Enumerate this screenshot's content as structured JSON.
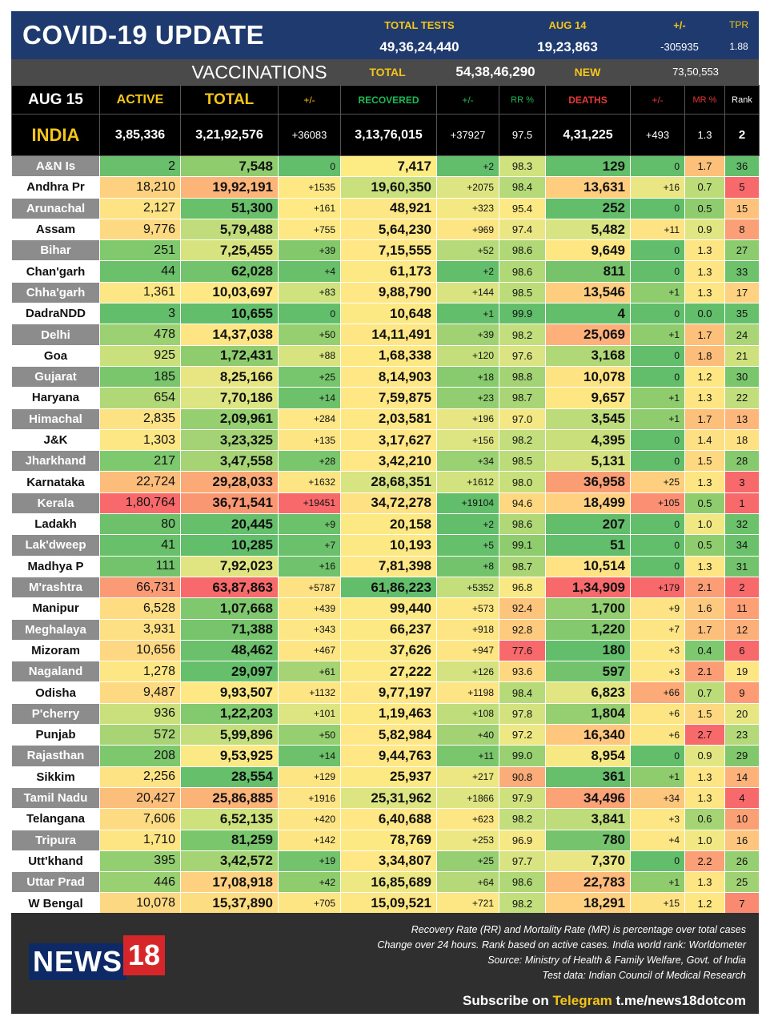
{
  "header": {
    "title": "COVID-19 UPDATE",
    "total_tests_label": "TOTAL TESTS",
    "total_tests_value": "49,36,24,440",
    "day_label": "AUG 14",
    "day_value": "19,23,863",
    "change_label": "+/-",
    "change_value": "-305935",
    "tpr_label": "TPR",
    "tpr_value": "1.88"
  },
  "vaccinations": {
    "label": "VACCINATIONS",
    "total_label": "TOTAL",
    "total_value": "54,38,46,290",
    "new_label": "NEW",
    "new_value": "73,50,553"
  },
  "columns": [
    "AUG 15",
    "ACTIVE",
    "TOTAL",
    "+/-",
    "RECOVERED",
    "+/-",
    "RR %",
    "DEATHS",
    "+/-",
    "MR %",
    "Rank"
  ],
  "india": [
    "INDIA",
    "3,85,336",
    "3,21,92,576",
    "+36083",
    "3,13,76,015",
    "+37927",
    "97.5",
    "4,31,225",
    "+493",
    "1.3",
    "2"
  ],
  "colors": {
    "header_bg": "#1e3a6e",
    "accent_yellow": "#f5c518",
    "recovered_green": "#1db954",
    "deaths_red": "#e53935"
  },
  "rows": [
    {
      "c": [
        "A&N Is",
        "2",
        "7,548",
        "0",
        "7,417",
        "+2",
        "98.3",
        "129",
        "0",
        "1.7",
        "36"
      ],
      "bg": [
        "",
        "#69bf6b",
        "#8fcc6e",
        "#63be6b",
        "#fdeb84",
        "#63be6b",
        "#cfe27d",
        "#63be6b",
        "#63be6b",
        "#fcc07b",
        "#63be6b"
      ]
    },
    {
      "c": [
        "Andhra Pr",
        "18,210",
        "19,92,191",
        "+1535",
        "19,60,350",
        "+2075",
        "98.4",
        "13,631",
        "+16",
        "0.7",
        "5"
      ],
      "bg": [
        "",
        "#fdd17f",
        "#fcb479",
        "#fde884",
        "#cae07d",
        "#dde582",
        "#b7da79",
        "#fecd7e",
        "#e9e683",
        "#bcdc79",
        "#f8696b"
      ]
    },
    {
      "c": [
        "Arunachal",
        "2,127",
        "51,300",
        "+161",
        "48,921",
        "+323",
        "95.4",
        "252",
        "0",
        "0.5",
        "15"
      ],
      "bg": [
        "",
        "#fde383",
        "#69c06b",
        "#ffe984",
        "#fde784",
        "#f4e883",
        "#fde984",
        "#63be6b",
        "#63be6b",
        "#8fcc6e",
        "#fec27c"
      ]
    },
    {
      "c": [
        "Assam",
        "9,776",
        "5,79,488",
        "+755",
        "5,64,230",
        "+969",
        "97.4",
        "5,482",
        "+11",
        "0.9",
        "8"
      ],
      "bg": [
        "",
        "#fdd982",
        "#c1dd7b",
        "#fde884",
        "#fee784",
        "#fde584",
        "#e9e683",
        "#d8e481",
        "#fde383",
        "#e1e582",
        "#fba076"
      ]
    },
    {
      "c": [
        "Bihar",
        "251",
        "7,25,455",
        "+39",
        "7,15,555",
        "+52",
        "98.6",
        "9,649",
        "0",
        "1.3",
        "27"
      ],
      "bg": [
        "",
        "#81c96d",
        "#d6e37f",
        "#83c96c",
        "#fee784",
        "#b6da79",
        "#b1d877",
        "#fee683",
        "#63be6b",
        "#fee583",
        "#8ccb6e"
      ]
    },
    {
      "c": [
        "Chan'garh",
        "44",
        "62,028",
        "+4",
        "61,173",
        "+2",
        "98.6",
        "811",
        "0",
        "1.3",
        "33"
      ],
      "bg": [
        "",
        "#6ac06b",
        "#73c36c",
        "#69c06b",
        "#fde984",
        "#63be6b",
        "#b1d877",
        "#76c36c",
        "#63be6b",
        "#fee583",
        "#6fc26c"
      ]
    },
    {
      "c": [
        "Chha'garh",
        "1,361",
        "10,03,697",
        "+83",
        "9,88,790",
        "+144",
        "98.5",
        "13,546",
        "+1",
        "1.3",
        "17"
      ],
      "bg": [
        "",
        "#fde684",
        "#fee884",
        "#cfe27d",
        "#fee784",
        "#d9e481",
        "#bcdc79",
        "#fecd7e",
        "#8ecc6e",
        "#fee583",
        "#fed280"
      ]
    },
    {
      "c": [
        "DadraNDD",
        "3",
        "10,655",
        "0",
        "10,648",
        "+1",
        "99.9",
        "4",
        "0",
        "0.0",
        "35"
      ],
      "bg": [
        "",
        "#63be6b",
        "#63be6b",
        "#63be6b",
        "#fde984",
        "#63be6b",
        "#63be6b",
        "#63be6b",
        "#63be6b",
        "#63be6b",
        "#66bf6b"
      ]
    },
    {
      "c": [
        "Delhi",
        "478",
        "14,37,038",
        "+50",
        "14,11,491",
        "+39",
        "98.2",
        "25,069",
        "+1",
        "1.7",
        "24"
      ],
      "bg": [
        "",
        "#9bd172",
        "#fde584",
        "#96cf70",
        "#fee684",
        "#a0d273",
        "#c3de7c",
        "#fdb079",
        "#8ecc6e",
        "#fcc07b",
        "#aad576"
      ]
    },
    {
      "c": [
        "Goa",
        "925",
        "1,72,431",
        "+88",
        "1,68,338",
        "+120",
        "97.6",
        "3,168",
        "0",
        "1.8",
        "21"
      ],
      "bg": [
        "",
        "#c9e07c",
        "#8fcc6e",
        "#d6e37f",
        "#fee884",
        "#c5de7c",
        "#dbe482",
        "#b0d877",
        "#63be6b",
        "#fcbc7a",
        "#cee17d"
      ]
    },
    {
      "c": [
        "Gujarat",
        "185",
        "8,25,166",
        "+25",
        "8,14,903",
        "+18",
        "98.8",
        "10,078",
        "0",
        "1.2",
        "30"
      ],
      "bg": [
        "",
        "#7ac66c",
        "#e8e683",
        "#77c56c",
        "#fee784",
        "#88cb6e",
        "#a3d375",
        "#fee383",
        "#63be6b",
        "#fee683",
        "#7ac66d"
      ]
    },
    {
      "c": [
        "Haryana",
        "654",
        "7,70,186",
        "+14",
        "7,59,875",
        "+23",
        "98.7",
        "9,657",
        "+1",
        "1.3",
        "22"
      ],
      "bg": [
        "",
        "#b1d877",
        "#dde582",
        "#6ec16b",
        "#fee784",
        "#92ce71",
        "#aad576",
        "#fee683",
        "#8ecc6e",
        "#fee583",
        "#c2dd7c"
      ]
    },
    {
      "c": [
        "Himachal",
        "2,835",
        "2,09,961",
        "+284",
        "2,03,581",
        "+196",
        "97.0",
        "3,545",
        "+1",
        "1.7",
        "13"
      ],
      "bg": [
        "",
        "#fde284",
        "#96cf70",
        "#fee784",
        "#fee884",
        "#e7e683",
        "#f3e884",
        "#bcdc79",
        "#8ecc6e",
        "#fcc07b",
        "#feb77a"
      ]
    },
    {
      "c": [
        "J&K",
        "1,303",
        "3,23,325",
        "+135",
        "3,17,627",
        "+156",
        "98.2",
        "4,395",
        "0",
        "1.4",
        "18"
      ],
      "bg": [
        "",
        "#fde684",
        "#a3d375",
        "#fde584",
        "#fee784",
        "#dde582",
        "#c3de7c",
        "#c8df7c",
        "#63be6b",
        "#fde083",
        "#fee183"
      ]
    },
    {
      "c": [
        "Jharkhand",
        "217",
        "3,47,558",
        "+28",
        "3,42,210",
        "+34",
        "98.5",
        "5,131",
        "0",
        "1.5",
        "28"
      ],
      "bg": [
        "",
        "#7ec86d",
        "#a6d475",
        "#7ac66d",
        "#fee784",
        "#9ad172",
        "#bcdc79",
        "#d3e27f",
        "#63be6b",
        "#fdd881",
        "#87ca6e"
      ]
    },
    {
      "c": [
        "Karnataka",
        "22,724",
        "29,28,033",
        "+1632",
        "28,68,351",
        "+1612",
        "98.0",
        "36,958",
        "+25",
        "1.3",
        "3"
      ],
      "bg": [
        "",
        "#fcbc7a",
        "#fbaa77",
        "#fde584",
        "#d8e481",
        "#d2e27f",
        "#c8e07c",
        "#fa9d75",
        "#fecf7f",
        "#fee583",
        "#f8696b"
      ]
    },
    {
      "c": [
        "Kerala",
        "1,80,764",
        "36,71,541",
        "+19451",
        "34,72,278",
        "+19104",
        "94.6",
        "18,499",
        "+105",
        "0.5",
        "1"
      ],
      "bg": [
        "",
        "#f8696b",
        "#fa9773",
        "#f8696b",
        "#fde183",
        "#63be6b",
        "#fed880",
        "#fed07f",
        "#fa8f73",
        "#8fcc6e",
        "#f8696b"
      ]
    },
    {
      "c": [
        "Ladakh",
        "80",
        "20,445",
        "+9",
        "20,158",
        "+2",
        "98.6",
        "207",
        "0",
        "1.0",
        "32"
      ],
      "bg": [
        "",
        "#6ec16b",
        "#66bf6b",
        "#6cc16b",
        "#fde984",
        "#63be6b",
        "#b1d877",
        "#63be6b",
        "#63be6b",
        "#f1e884",
        "#6cc16b"
      ]
    },
    {
      "c": [
        "Lak'dweep",
        "41",
        "10,285",
        "+7",
        "10,193",
        "+5",
        "99.1",
        "51",
        "0",
        "0.5",
        "34"
      ],
      "bg": [
        "",
        "#69c06b",
        "#63be6b",
        "#6bc06b",
        "#fde984",
        "#66bf6b",
        "#8fcc6e",
        "#63be6b",
        "#63be6b",
        "#8fcc6e",
        "#6ac06b"
      ]
    },
    {
      "c": [
        "Madhya P",
        "111",
        "7,92,023",
        "+16",
        "7,81,398",
        "+8",
        "98.7",
        "10,514",
        "0",
        "1.3",
        "31"
      ],
      "bg": [
        "",
        "#72c36c",
        "#e0e582",
        "#70c26c",
        "#fee784",
        "#73c36c",
        "#aad576",
        "#fee283",
        "#63be6b",
        "#fee583",
        "#73c36c"
      ]
    },
    {
      "c": [
        "M'rashtra",
        "66,731",
        "63,87,863",
        "+5787",
        "61,86,223",
        "+5352",
        "96.8",
        "1,34,909",
        "+179",
        "2.1",
        "2"
      ],
      "bg": [
        "",
        "#fa9b75",
        "#f8696b",
        "#fde183",
        "#63be6b",
        "#c5de7c",
        "#f9e984",
        "#f8696b",
        "#f8696b",
        "#fb9e76",
        "#f8696b"
      ]
    },
    {
      "c": [
        "Manipur",
        "6,528",
        "1,07,668",
        "+439",
        "99,440",
        "+573",
        "92.4",
        "1,700",
        "+9",
        "1.6",
        "11"
      ],
      "bg": [
        "",
        "#fddc82",
        "#80c86d",
        "#fde584",
        "#fde984",
        "#fde684",
        "#fdc47c",
        "#93ce71",
        "#fde384",
        "#fdc97e",
        "#fea075"
      ]
    },
    {
      "c": [
        "Meghalaya",
        "3,931",
        "71,388",
        "+343",
        "66,237",
        "+918",
        "92.8",
        "1,220",
        "+7",
        "1.7",
        "12"
      ],
      "bg": [
        "",
        "#fde083",
        "#76c56c",
        "#fde684",
        "#fde984",
        "#fde584",
        "#fdca7e",
        "#84c96d",
        "#fde584",
        "#fcc07b",
        "#fcaf79"
      ]
    },
    {
      "c": [
        "Mizoram",
        "10,656",
        "48,462",
        "+467",
        "37,626",
        "+947",
        "77.6",
        "180",
        "+3",
        "0.4",
        "6"
      ],
      "bg": [
        "",
        "#fdd781",
        "#6ac06b",
        "#fde584",
        "#fde984",
        "#fde584",
        "#f8696b",
        "#63be6b",
        "#fde784",
        "#7ec86d",
        "#f8696b"
      ]
    },
    {
      "c": [
        "Nagaland",
        "1,278",
        "29,097",
        "+61",
        "27,222",
        "+126",
        "93.6",
        "597",
        "+3",
        "2.1",
        "19"
      ],
      "bg": [
        "",
        "#fde684",
        "#65bf6b",
        "#a6d475",
        "#fde984",
        "#d5e280",
        "#fdd880",
        "#72c36c",
        "#fde784",
        "#fb9e76",
        "#fee683"
      ]
    },
    {
      "c": [
        "Odisha",
        "9,487",
        "9,93,507",
        "+1132",
        "9,77,197",
        "+1198",
        "98.4",
        "6,823",
        "+66",
        "0.7",
        "9"
      ],
      "bg": [
        "",
        "#fdd982",
        "#fee884",
        "#fde584",
        "#fee784",
        "#fde484",
        "#b7da79",
        "#e2e682",
        "#fcab78",
        "#bcdc79",
        "#fc9b74"
      ]
    },
    {
      "c": [
        "P'cherry",
        "936",
        "1,22,203",
        "+101",
        "1,19,463",
        "+108",
        "97.8",
        "1,804",
        "+6",
        "1.5",
        "20"
      ],
      "bg": [
        "",
        "#c9e07c",
        "#83c96d",
        "#dde582",
        "#fde984",
        "#c0dd7b",
        "#d3e27f",
        "#96cf71",
        "#fde584",
        "#fdd881",
        "#e8e683"
      ]
    },
    {
      "c": [
        "Punjab",
        "572",
        "5,99,896",
        "+50",
        "5,82,984",
        "+40",
        "97.2",
        "16,340",
        "+6",
        "2.7",
        "23"
      ],
      "bg": [
        "",
        "#a8d475",
        "#c5de7c",
        "#96cf70",
        "#fee784",
        "#a2d274",
        "#ede784",
        "#fec77d",
        "#fde584",
        "#f8696b",
        "#b5d978"
      ]
    },
    {
      "c": [
        "Rajasthan",
        "208",
        "9,53,925",
        "+14",
        "9,44,763",
        "+11",
        "99.0",
        "8,954",
        "0",
        "0.9",
        "29"
      ],
      "bg": [
        "",
        "#7dc76d",
        "#fae984",
        "#6ec16b",
        "#fee784",
        "#7ac66c",
        "#98d072",
        "#f6e984",
        "#63be6b",
        "#e1e582",
        "#81c86d"
      ]
    },
    {
      "c": [
        "Sikkim",
        "2,256",
        "28,554",
        "+129",
        "25,937",
        "+217",
        "90.8",
        "361",
        "+1",
        "1.3",
        "14"
      ],
      "bg": [
        "",
        "#fde383",
        "#65bf6b",
        "#fde584",
        "#fde984",
        "#ede783",
        "#fcac78",
        "#68bf6b",
        "#8ecc6e",
        "#fee583",
        "#feb27a"
      ]
    },
    {
      "c": [
        "Tamil Nadu",
        "20,427",
        "25,86,885",
        "+1916",
        "25,31,962",
        "+1866",
        "97.9",
        "34,496",
        "+34",
        "1.3",
        "4"
      ],
      "bg": [
        "",
        "#fcbf7b",
        "#fbb378",
        "#fde484",
        "#dce582",
        "#dde582",
        "#cee17d",
        "#fba276",
        "#fdc67d",
        "#fee583",
        "#f8696b"
      ]
    },
    {
      "c": [
        "Telangana",
        "7,606",
        "6,52,135",
        "+420",
        "6,40,688",
        "+623",
        "98.2",
        "3,841",
        "+3",
        "0.6",
        "10"
      ],
      "bg": [
        "",
        "#fddb82",
        "#cde17d",
        "#fde584",
        "#fee784",
        "#fde684",
        "#c3de7c",
        "#bfdc7a",
        "#fde784",
        "#a5d474",
        "#fba075"
      ]
    },
    {
      "c": [
        "Tripura",
        "1,710",
        "81,259",
        "+142",
        "78,769",
        "+253",
        "96.9",
        "780",
        "+4",
        "1.0",
        "16"
      ],
      "bg": [
        "",
        "#fde584",
        "#7ac66c",
        "#fde584",
        "#fde984",
        "#ece783",
        "#f6e884",
        "#75c36c",
        "#fde684",
        "#f1e884",
        "#fdc57d"
      ]
    },
    {
      "c": [
        "Utt'khand",
        "395",
        "3,42,572",
        "+19",
        "3,34,807",
        "+25",
        "97.7",
        "7,370",
        "0",
        "2.2",
        "26"
      ],
      "bg": [
        "",
        "#93ce71",
        "#a5d475",
        "#73c36c",
        "#fee784",
        "#95cf71",
        "#d8e381",
        "#e9e683",
        "#63be6b",
        "#fba076",
        "#96cf71"
      ]
    },
    {
      "c": [
        "Uttar Prad",
        "446",
        "17,08,918",
        "+42",
        "16,85,689",
        "+64",
        "98.6",
        "22,783",
        "+1",
        "1.3",
        "25"
      ],
      "bg": [
        "",
        "#98d072",
        "#fdd17f",
        "#8ecc6e",
        "#ede784",
        "#b5d978",
        "#b1d877",
        "#fdba7a",
        "#8ecc6e",
        "#fee583",
        "#a0d273"
      ]
    },
    {
      "c": [
        "W Bengal",
        "10,078",
        "15,37,890",
        "+705",
        "15,09,521",
        "+721",
        "98.2",
        "18,291",
        "+15",
        "1.2",
        "7"
      ],
      "bg": [
        "",
        "#fdd882",
        "#fddd82",
        "#fde584",
        "#fde684",
        "#fde684",
        "#c3de7c",
        "#fed07f",
        "#fde284",
        "#fee683",
        "#f98a71"
      ]
    }
  ],
  "footer": {
    "logo_text": "NEWS",
    "logo_number": "18",
    "notes": [
      "Recovery Rate (RR) and Mortality Rate (MR) is percentage over total cases",
      "Change over 24 hours. Rank based on active cases. India world rank: Worldometer",
      "Source: Ministry of Health & Family Welfare, Govt. of India",
      "Test data: Indian Council of Medical Research"
    ],
    "subscribe_prefix": "Subscribe on",
    "subscribe_telegram": "Telegram",
    "subscribe_link": "t.me/news18dotcom"
  }
}
